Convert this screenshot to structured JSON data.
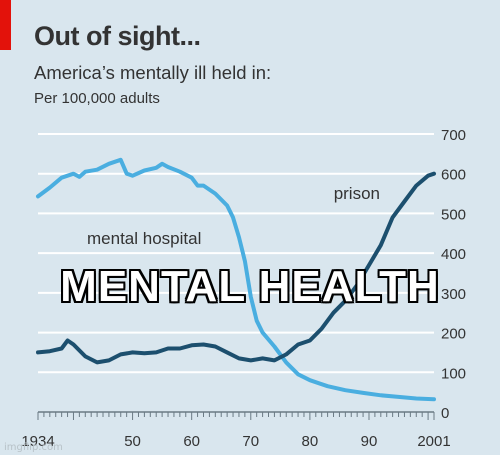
{
  "chart_data": {
    "type": "line",
    "title": "Out of sight...",
    "subtitle": "America’s mentally ill held in:",
    "units": "Per 100,000 adults",
    "xlim": [
      1934,
      2001
    ],
    "ylim": [
      0,
      700
    ],
    "yticks": [
      0,
      100,
      200,
      300,
      400,
      500,
      600,
      700
    ],
    "xtick_labels": [
      {
        "value": 1934,
        "label": "1934"
      },
      {
        "value": 1950,
        "label": "50"
      },
      {
        "value": 1960,
        "label": "60"
      },
      {
        "value": 1970,
        "label": "70"
      },
      {
        "value": 1980,
        "label": "80"
      },
      {
        "value": 1990,
        "label": "90"
      },
      {
        "value": 2001,
        "label": "2001"
      }
    ],
    "grid": true,
    "y_axis_side": "right",
    "series": [
      {
        "name": "mental hospital",
        "color": "#4aaee0",
        "points": [
          [
            1934,
            543
          ],
          [
            1936,
            565
          ],
          [
            1938,
            590
          ],
          [
            1940,
            600
          ],
          [
            1941,
            592
          ],
          [
            1942,
            605
          ],
          [
            1944,
            610
          ],
          [
            1946,
            625
          ],
          [
            1948,
            635
          ],
          [
            1949,
            600
          ],
          [
            1950,
            595
          ],
          [
            1952,
            608
          ],
          [
            1954,
            615
          ],
          [
            1955,
            625
          ],
          [
            1956,
            617
          ],
          [
            1958,
            605
          ],
          [
            1960,
            590
          ],
          [
            1961,
            570
          ],
          [
            1962,
            570
          ],
          [
            1964,
            550
          ],
          [
            1966,
            520
          ],
          [
            1967,
            490
          ],
          [
            1968,
            440
          ],
          [
            1969,
            380
          ],
          [
            1970,
            290
          ],
          [
            1971,
            230
          ],
          [
            1972,
            200
          ],
          [
            1974,
            165
          ],
          [
            1976,
            125
          ],
          [
            1978,
            95
          ],
          [
            1980,
            80
          ],
          [
            1983,
            65
          ],
          [
            1986,
            55
          ],
          [
            1989,
            48
          ],
          [
            1992,
            42
          ],
          [
            1995,
            38
          ],
          [
            1998,
            34
          ],
          [
            2001,
            32
          ]
        ]
      },
      {
        "name": "prison",
        "color": "#1c4f6e",
        "points": [
          [
            1934,
            150
          ],
          [
            1936,
            153
          ],
          [
            1938,
            160
          ],
          [
            1939,
            180
          ],
          [
            1940,
            170
          ],
          [
            1942,
            140
          ],
          [
            1944,
            125
          ],
          [
            1946,
            130
          ],
          [
            1948,
            145
          ],
          [
            1950,
            150
          ],
          [
            1952,
            148
          ],
          [
            1954,
            150
          ],
          [
            1956,
            160
          ],
          [
            1958,
            160
          ],
          [
            1960,
            168
          ],
          [
            1962,
            170
          ],
          [
            1964,
            165
          ],
          [
            1966,
            150
          ],
          [
            1968,
            135
          ],
          [
            1970,
            130
          ],
          [
            1972,
            135
          ],
          [
            1974,
            130
          ],
          [
            1976,
            145
          ],
          [
            1978,
            170
          ],
          [
            1980,
            180
          ],
          [
            1982,
            210
          ],
          [
            1984,
            250
          ],
          [
            1986,
            280
          ],
          [
            1988,
            320
          ],
          [
            1990,
            370
          ],
          [
            1992,
            420
          ],
          [
            1994,
            490
          ],
          [
            1996,
            530
          ],
          [
            1998,
            570
          ],
          [
            2000,
            595
          ],
          [
            2001,
            600
          ]
        ]
      }
    ]
  },
  "overlay_text": "MENTAL HEALTH",
  "watermark": "imgflip.com"
}
